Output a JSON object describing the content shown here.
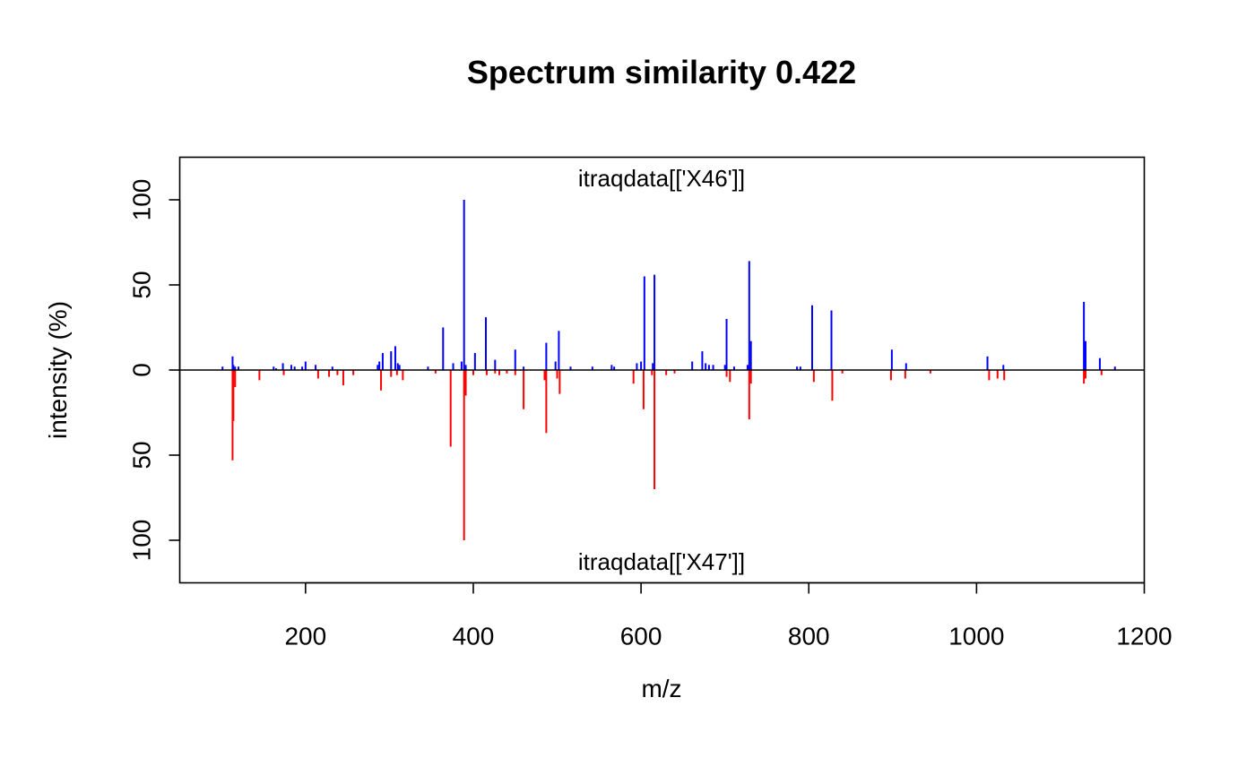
{
  "chart_data": {
    "type": "line",
    "title": "Spectrum similarity 0.422",
    "xlabel": "m/z",
    "ylabel": "intensity (%)",
    "xlim": [
      50,
      1200
    ],
    "ylim": [
      -125,
      125
    ],
    "x_ticks": [
      200,
      400,
      600,
      800,
      1000,
      1200
    ],
    "x_tick_labels": [
      "200",
      "400",
      "600",
      "800",
      "1000",
      "1200"
    ],
    "y_ticks": [
      100,
      50,
      0,
      -50,
      -100
    ],
    "y_tick_labels": [
      "100",
      "50",
      "0",
      "50",
      "100"
    ],
    "grid": false,
    "legend": "none",
    "top_label": "itraqdata[['X46']]",
    "bottom_label": "itraqdata[['X47']]",
    "colors": {
      "top_spectrum": "#0000ff",
      "bottom_spectrum": "#ff0000",
      "baseline": "#000000",
      "axes": "#000000"
    },
    "series": [
      {
        "name": "itraqdata[['X46']]",
        "direction": "up",
        "x": [
          101,
          113,
          114,
          116,
          120,
          162,
          165,
          173,
          183,
          187,
          196,
          200,
          212,
          232,
          286,
          288,
          292,
          302,
          307,
          310,
          312,
          346,
          364,
          376,
          386,
          389,
          391,
          402,
          415,
          426,
          450,
          460,
          487,
          498,
          502,
          516,
          542,
          565,
          568,
          595,
          600,
          604,
          614,
          616,
          661,
          673,
          677,
          681,
          686,
          700,
          702,
          711,
          727,
          729,
          731,
          786,
          790,
          804,
          827,
          899,
          916,
          1013,
          1032,
          1128,
          1130,
          1147,
          1165
        ],
        "y": [
          2,
          8,
          3,
          2,
          2,
          2,
          1,
          4,
          3,
          2,
          2,
          5,
          3,
          2,
          3,
          5,
          10,
          11,
          14,
          4,
          3,
          2,
          25,
          4,
          5,
          100,
          3,
          10,
          31,
          6,
          12,
          2,
          16,
          5,
          23,
          2,
          2,
          3,
          2,
          4,
          5,
          55,
          4,
          56,
          5,
          11,
          4,
          3,
          3,
          3,
          30,
          2,
          3,
          64,
          17,
          2,
          2,
          38,
          35,
          12,
          4,
          8,
          3,
          40,
          17,
          7,
          2
        ]
      },
      {
        "name": "itraqdata[['X47']]",
        "direction": "down",
        "x": [
          113,
          114,
          116,
          145,
          174,
          215,
          228,
          238,
          245,
          257,
          290,
          302,
          309,
          316,
          355,
          373,
          389,
          391,
          400,
          416,
          426,
          431,
          440,
          450,
          460,
          485,
          487,
          500,
          503,
          591,
          603,
          613,
          616,
          630,
          640,
          702,
          706,
          729,
          731,
          806,
          828,
          840,
          898,
          915,
          945,
          1015,
          1025,
          1033,
          1128,
          1130,
          1149
        ],
        "y": [
          53,
          30,
          10,
          6,
          3,
          5,
          4,
          3,
          9,
          3,
          12,
          4,
          3,
          6,
          2,
          45,
          100,
          15,
          3,
          3,
          2,
          3,
          2,
          3,
          23,
          6,
          37,
          5,
          14,
          8,
          23,
          3,
          70,
          3,
          2,
          4,
          7,
          29,
          8,
          7,
          18,
          2,
          6,
          5,
          2,
          6,
          5,
          6,
          8,
          5,
          3
        ]
      }
    ]
  }
}
